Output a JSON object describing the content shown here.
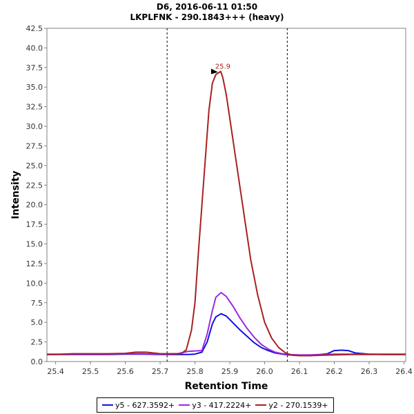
{
  "chart_data": {
    "type": "line",
    "title": "D6, 2016-06-11 01:50",
    "subtitle": "LKPLFNK - 290.1843+++ (heavy)",
    "xlabel": "Retention Time",
    "ylabel": "Intensity",
    "xlim": [
      25.375,
      26.405
    ],
    "ylim": [
      0,
      42.5
    ],
    "xticks": [
      "25.4",
      "25.5",
      "25.6",
      "25.7",
      "25.8",
      "25.9",
      "26.0",
      "26.1",
      "26.2",
      "26.3",
      "26.4"
    ],
    "yticks": [
      "0.0",
      "2.5",
      "5.0",
      "7.5",
      "10.0",
      "12.5",
      "15.0",
      "17.5",
      "20.0",
      "22.5",
      "25.0",
      "27.5",
      "30.0",
      "32.5",
      "35.0",
      "37.5",
      "40.0",
      "42.5"
    ],
    "grid": false,
    "legend": "bottom",
    "vlines": [
      25.72,
      26.065
    ],
    "peak_annotation": {
      "x": 25.874,
      "y": 37.0,
      "label": "25.9"
    },
    "series": [
      {
        "name": "y5 - 627.3592+",
        "color": "#1010e0",
        "x": [
          25.375,
          25.4,
          25.45,
          25.5,
          25.55,
          25.6,
          25.65,
          25.7,
          25.75,
          25.78,
          25.8,
          25.82,
          25.835,
          25.85,
          25.86,
          25.875,
          25.89,
          25.91,
          25.93,
          25.95,
          25.97,
          25.99,
          26.01,
          26.03,
          26.05,
          26.07,
          26.1,
          26.13,
          26.16,
          26.18,
          26.2,
          26.22,
          26.24,
          26.26,
          26.3,
          26.35,
          26.405
        ],
        "y": [
          0.9,
          0.9,
          0.9,
          0.9,
          0.9,
          0.95,
          0.95,
          0.9,
          0.9,
          0.9,
          0.95,
          1.2,
          2.5,
          4.8,
          5.7,
          6.1,
          5.8,
          4.9,
          4.0,
          3.2,
          2.4,
          1.8,
          1.4,
          1.1,
          0.95,
          0.85,
          0.8,
          0.8,
          0.9,
          1.0,
          1.4,
          1.45,
          1.4,
          1.1,
          0.95,
          0.9,
          0.9
        ]
      },
      {
        "name": "y3 - 417.2224+",
        "color": "#9a28e0",
        "x": [
          25.375,
          25.4,
          25.45,
          25.5,
          25.55,
          25.6,
          25.65,
          25.7,
          25.75,
          25.78,
          25.8,
          25.82,
          25.835,
          25.85,
          25.86,
          25.875,
          25.89,
          25.91,
          25.93,
          25.95,
          25.97,
          25.99,
          26.01,
          26.03,
          26.05,
          26.07,
          26.1,
          26.13,
          26.16,
          26.2,
          26.25,
          26.3,
          26.35,
          26.405
        ],
        "y": [
          0.95,
          0.95,
          0.95,
          0.95,
          0.95,
          1.0,
          1.0,
          0.95,
          1.0,
          1.3,
          1.35,
          1.4,
          3.5,
          6.5,
          8.2,
          8.8,
          8.3,
          7.0,
          5.5,
          4.2,
          3.1,
          2.2,
          1.6,
          1.2,
          1.0,
          0.9,
          0.85,
          0.85,
          0.9,
          0.95,
          0.95,
          0.95,
          0.95,
          0.95
        ]
      },
      {
        "name": "y2 - 270.1539+",
        "color": "#a82020",
        "x": [
          25.375,
          25.4,
          25.45,
          25.5,
          25.55,
          25.6,
          25.63,
          25.66,
          25.7,
          25.73,
          25.76,
          25.775,
          25.79,
          25.8,
          25.81,
          25.82,
          25.83,
          25.84,
          25.85,
          25.86,
          25.874,
          25.88,
          25.89,
          25.9,
          25.92,
          25.94,
          25.96,
          25.98,
          26.0,
          26.02,
          26.04,
          26.06,
          26.08,
          26.1,
          26.13,
          26.16,
          26.2,
          26.25,
          26.3,
          26.35,
          26.405
        ],
        "y": [
          0.9,
          0.9,
          1.0,
          1.0,
          1.0,
          1.05,
          1.2,
          1.2,
          1.0,
          1.0,
          1.0,
          1.5,
          4.0,
          7.5,
          14.0,
          20.0,
          26.0,
          32.0,
          35.5,
          36.6,
          37.0,
          36.2,
          34.0,
          31.0,
          25.0,
          19.0,
          13.0,
          8.5,
          5.0,
          3.0,
          1.8,
          1.1,
          0.8,
          0.75,
          0.75,
          0.8,
          0.85,
          0.9,
          0.9,
          0.9,
          0.9
        ]
      }
    ]
  }
}
